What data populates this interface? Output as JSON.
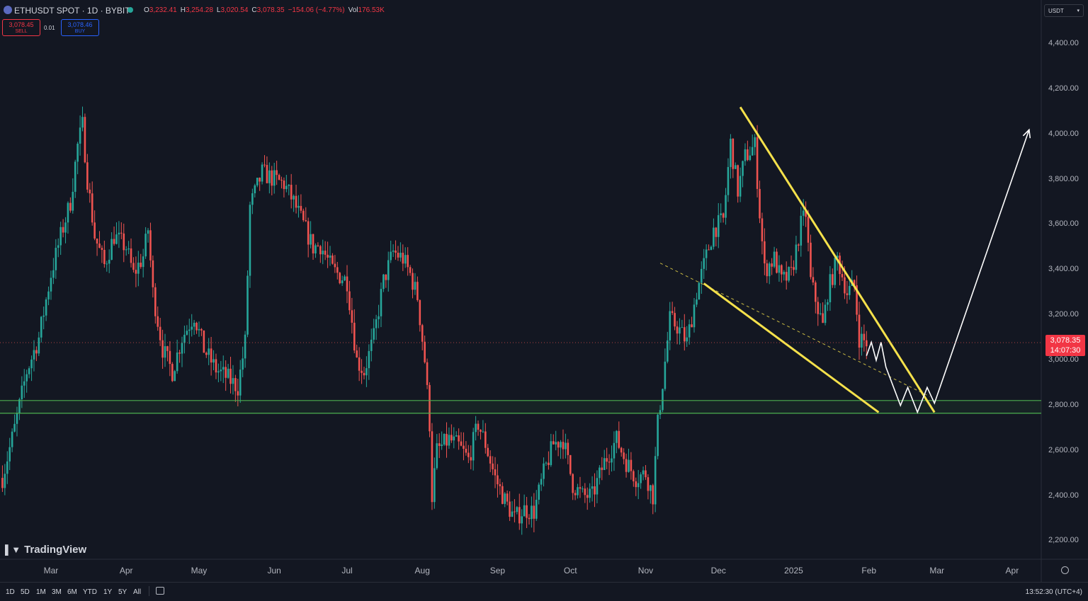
{
  "header": {
    "symbol": "ETHUSDT SPOT · 1D · BYBIT",
    "ohlc": {
      "o_label": "O",
      "o": "3,232.41",
      "h_label": "H",
      "h": "3,254.28",
      "l_label": "L",
      "l": "3,020.54",
      "c_label": "C",
      "c": "3,078.35",
      "change": "−154.06 (−4.77%)",
      "vol_label": "Vol",
      "vol": "176.53K"
    },
    "sell": {
      "price": "3,078.45",
      "label": "SELL"
    },
    "buy": {
      "price": "3,078.46",
      "label": "BUY"
    },
    "spread": "0.01",
    "currency": "USDT"
  },
  "price_tag": {
    "price": "3,078.35",
    "countdown": "14:07:30"
  },
  "watermark": "TradingView",
  "bottom": {
    "ranges": [
      "1D",
      "5D",
      "1M",
      "3M",
      "6M",
      "YTD",
      "1Y",
      "5Y",
      "All"
    ],
    "clock": "13:52:30 (UTC+4)"
  },
  "colors": {
    "background": "#131722",
    "up": "#26a69a",
    "down": "#ef5350",
    "trendline": "#f5e14b",
    "support": "#4caf50",
    "projection": "#ffffff"
  },
  "icons": [
    "ethereum-icon",
    "live-dot-icon",
    "calendar-icon",
    "gear-icon",
    "tradingview-logo-icon",
    "chevron-down-icon"
  ],
  "chart_data": {
    "type": "candlestick",
    "title": "ETHUSDT SPOT · 1D · BYBIT",
    "y_axis": {
      "ticks": [
        2200,
        2400,
        2600,
        2800,
        3000,
        3200,
        3400,
        3600,
        3800,
        4000,
        4200,
        4400
      ],
      "tick_labels": [
        "2,200.00",
        "2,400.00",
        "2,600.00",
        "2,800.00",
        "3,000.00",
        "3,200.00",
        "3,400.00",
        "3,600.00",
        "3,800.00",
        "4,000.00",
        "4,200.00",
        "4,400.00"
      ],
      "range": [
        2120,
        4500
      ]
    },
    "x_axis": {
      "labels": [
        "Mar",
        "Apr",
        "May",
        "Jun",
        "Jul",
        "Aug",
        "Sep",
        "Oct",
        "Nov",
        "Dec",
        "2025",
        "Feb",
        "Mar",
        "Apr"
      ],
      "label_dates": [
        "2024-03-01",
        "2024-04-01",
        "2024-05-01",
        "2024-06-01",
        "2024-07-01",
        "2024-08-01",
        "2024-09-01",
        "2024-10-01",
        "2024-11-01",
        "2024-12-01",
        "2025-01-01",
        "2025-02-01",
        "2025-03-01",
        "2025-04-01"
      ],
      "range": [
        "2024-02-09",
        "2025-04-13"
      ]
    },
    "close_path": [
      [
        "2024-02-10",
        2480
      ],
      [
        "2024-02-15",
        2700
      ],
      [
        "2024-02-20",
        2950
      ],
      [
        "2024-02-25",
        3100
      ],
      [
        "2024-03-01",
        3380
      ],
      [
        "2024-03-05",
        3550
      ],
      [
        "2024-03-09",
        3700
      ],
      [
        "2024-03-12",
        3950
      ],
      [
        "2024-03-14",
        4040
      ],
      [
        "2024-03-16",
        3800
      ],
      [
        "2024-03-19",
        3550
      ],
      [
        "2024-03-23",
        3420
      ],
      [
        "2024-03-27",
        3550
      ],
      [
        "2024-04-01",
        3500
      ],
      [
        "2024-04-04",
        3380
      ],
      [
        "2024-04-08",
        3460
      ],
      [
        "2024-04-10",
        3580
      ],
      [
        "2024-04-12",
        3300
      ],
      [
        "2024-04-16",
        3050
      ],
      [
        "2024-04-20",
        2950
      ],
      [
        "2024-04-24",
        3100
      ],
      [
        "2024-04-29",
        3200
      ],
      [
        "2024-05-03",
        3050
      ],
      [
        "2024-05-08",
        2960
      ],
      [
        "2024-05-13",
        2920
      ],
      [
        "2024-05-17",
        2880
      ],
      [
        "2024-05-20",
        3080
      ],
      [
        "2024-05-22",
        3680
      ],
      [
        "2024-05-27",
        3830
      ],
      [
        "2024-06-01",
        3800
      ],
      [
        "2024-06-05",
        3780
      ],
      [
        "2024-06-09",
        3700
      ],
      [
        "2024-06-13",
        3600
      ],
      [
        "2024-06-17",
        3500
      ],
      [
        "2024-06-20",
        3510
      ],
      [
        "2024-06-25",
        3400
      ],
      [
        "2024-07-01",
        3350
      ],
      [
        "2024-07-05",
        3000
      ],
      [
        "2024-07-08",
        2950
      ],
      [
        "2024-07-12",
        3100
      ],
      [
        "2024-07-16",
        3350
      ],
      [
        "2024-07-20",
        3480
      ],
      [
        "2024-07-24",
        3450
      ],
      [
        "2024-07-27",
        3380
      ],
      [
        "2024-07-30",
        3280
      ],
      [
        "2024-08-02",
        3000
      ],
      [
        "2024-08-04",
        2720
      ],
      [
        "2024-08-05",
        2400
      ],
      [
        "2024-08-07",
        2600
      ],
      [
        "2024-08-12",
        2650
      ],
      [
        "2024-08-16",
        2620
      ],
      [
        "2024-08-20",
        2560
      ],
      [
        "2024-08-24",
        2720
      ],
      [
        "2024-08-27",
        2630
      ],
      [
        "2024-08-31",
        2480
      ],
      [
        "2024-09-04",
        2380
      ],
      [
        "2024-09-08",
        2300
      ],
      [
        "2024-09-12",
        2340
      ],
      [
        "2024-09-16",
        2330
      ],
      [
        "2024-09-20",
        2500
      ],
      [
        "2024-09-24",
        2630
      ],
      [
        "2024-09-28",
        2650
      ],
      [
        "2024-10-02",
        2450
      ],
      [
        "2024-10-06",
        2400
      ],
      [
        "2024-10-10",
        2400
      ],
      [
        "2024-10-15",
        2550
      ],
      [
        "2024-10-20",
        2650
      ],
      [
        "2024-10-24",
        2550
      ],
      [
        "2024-10-28",
        2480
      ],
      [
        "2024-11-01",
        2500
      ],
      [
        "2024-11-04",
        2400
      ],
      [
        "2024-11-06",
        2720
      ],
      [
        "2024-11-08",
        2900
      ],
      [
        "2024-11-11",
        3180
      ],
      [
        "2024-11-14",
        3150
      ],
      [
        "2024-11-18",
        3080
      ],
      [
        "2024-11-22",
        3300
      ],
      [
        "2024-11-25",
        3420
      ],
      [
        "2024-11-29",
        3580
      ],
      [
        "2024-12-03",
        3620
      ],
      [
        "2024-12-06",
        3960
      ],
      [
        "2024-12-09",
        3750
      ],
      [
        "2024-12-12",
        3900
      ],
      [
        "2024-12-16",
        3950
      ],
      [
        "2024-12-18",
        3650
      ],
      [
        "2024-12-20",
        3400
      ],
      [
        "2024-12-24",
        3450
      ],
      [
        "2024-12-27",
        3350
      ],
      [
        "2024-12-31",
        3380
      ],
      [
        "2025-01-04",
        3600
      ],
      [
        "2025-01-06",
        3650
      ],
      [
        "2025-01-08",
        3350
      ],
      [
        "2025-01-13",
        3150
      ],
      [
        "2025-01-15",
        3300
      ],
      [
        "2025-01-19",
        3450
      ],
      [
        "2025-01-23",
        3300
      ],
      [
        "2025-01-26",
        3330
      ],
      [
        "2025-01-28",
        3100
      ],
      [
        "2025-01-31",
        3078
      ]
    ],
    "support_zone": [
      2766,
      2822
    ],
    "falling_wedge": {
      "upper_line": [
        [
          "2024-12-10",
          4120
        ],
        [
          "2025-02-28",
          2770
        ]
      ],
      "lower_line": [
        [
          "2024-11-25",
          3340
        ],
        [
          "2025-02-05",
          2770
        ]
      ],
      "midline_dashed": [
        [
          "2024-11-07",
          3430
        ],
        [
          "2025-02-26",
          2840
        ]
      ]
    },
    "projected_path": [
      [
        "2025-01-31",
        3020
      ],
      [
        "2025-02-02",
        3080
      ],
      [
        "2025-02-04",
        3000
      ],
      [
        "2025-02-06",
        3080
      ],
      [
        "2025-02-08",
        2970
      ],
      [
        "2025-02-14",
        2800
      ],
      [
        "2025-02-17",
        2880
      ],
      [
        "2025-02-21",
        2770
      ],
      [
        "2025-02-25",
        2880
      ],
      [
        "2025-02-28",
        2810
      ],
      [
        "2025-04-08",
        4020
      ]
    ],
    "last_price": 3078.35
  }
}
